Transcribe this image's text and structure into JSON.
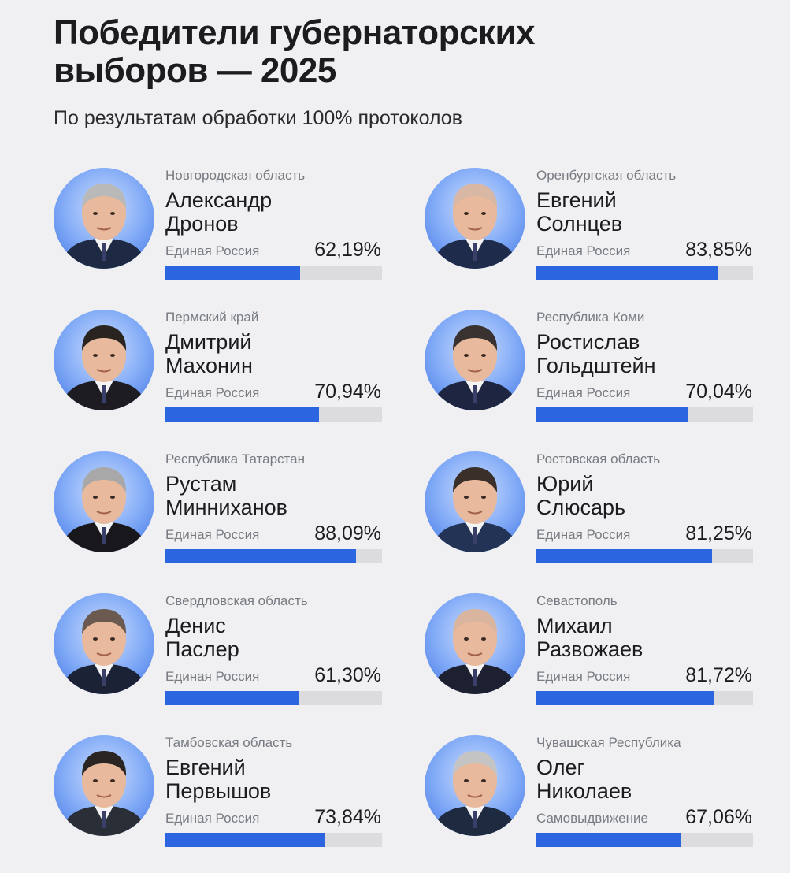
{
  "header": {
    "title_line1": "Победители губернаторских",
    "title_line2": "выборов — 2025",
    "subtitle": "По результатам обработки 100% протоколов"
  },
  "colors": {
    "accent": "#2b66e0",
    "track": "#dcdcde",
    "background": "#f0f0f2"
  },
  "winners": [
    {
      "region": "Новгородская область",
      "first": "Александр",
      "last": "Дронов",
      "party": "Единая Россия",
      "percent": "62,19%",
      "value": 62.19,
      "hair": "#b9b9b9",
      "suit": "#1e2a44"
    },
    {
      "region": "Оренбургская область",
      "first": "Евгений",
      "last": "Солнцев",
      "party": "Единая Россия",
      "percent": "83,85%",
      "value": 83.85,
      "hair": "#d8b8a4",
      "suit": "#1f2b4a"
    },
    {
      "region": "Пермский край",
      "first": "Дмитрий",
      "last": "Махонин",
      "party": "Единая Россия",
      "percent": "70,94%",
      "value": 70.94,
      "hair": "#2a2420",
      "suit": "#1c1c22"
    },
    {
      "region": "Республика Коми",
      "first": "Ростислав",
      "last": "Гольдштейн",
      "party": "Единая Россия",
      "percent": "70,04%",
      "value": 70.04,
      "hair": "#3a3230",
      "suit": "#1d2540"
    },
    {
      "region": "Республика Татарстан",
      "first": "Рустам",
      "last": "Минниханов",
      "party": "Единая Россия",
      "percent": "88,09%",
      "value": 88.09,
      "hair": "#a8a8a8",
      "suit": "#18181c"
    },
    {
      "region": "Ростовская область",
      "first": "Юрий",
      "last": "Слюсарь",
      "party": "Единая Россия",
      "percent": "81,25%",
      "value": 81.25,
      "hair": "#3b2f2a",
      "suit": "#223355"
    },
    {
      "region": "Свердловская область",
      "first": "Денис",
      "last": "Паслер",
      "party": "Единая Россия",
      "percent": "61,30%",
      "value": 61.3,
      "hair": "#6a5a50",
      "suit": "#1c2236"
    },
    {
      "region": "Севастополь",
      "first": "Михаил",
      "last": "Развожаев",
      "party": "Единая Россия",
      "percent": "81,72%",
      "value": 81.72,
      "hair": "#d9b5a0",
      "suit": "#1c2030"
    },
    {
      "region": "Тамбовская область",
      "first": "Евгений",
      "last": "Первышов",
      "party": "Единая Россия",
      "percent": "73,84%",
      "value": 73.84,
      "hair": "#2a2422",
      "suit": "#2a2e36"
    },
    {
      "region": "Чувашская Республика",
      "first": "Олег",
      "last": "Николаев",
      "party": "Самовыдвижение",
      "percent": "67,06%",
      "value": 67.06,
      "hair": "#c4c4c4",
      "suit": "#1e2a40"
    }
  ]
}
